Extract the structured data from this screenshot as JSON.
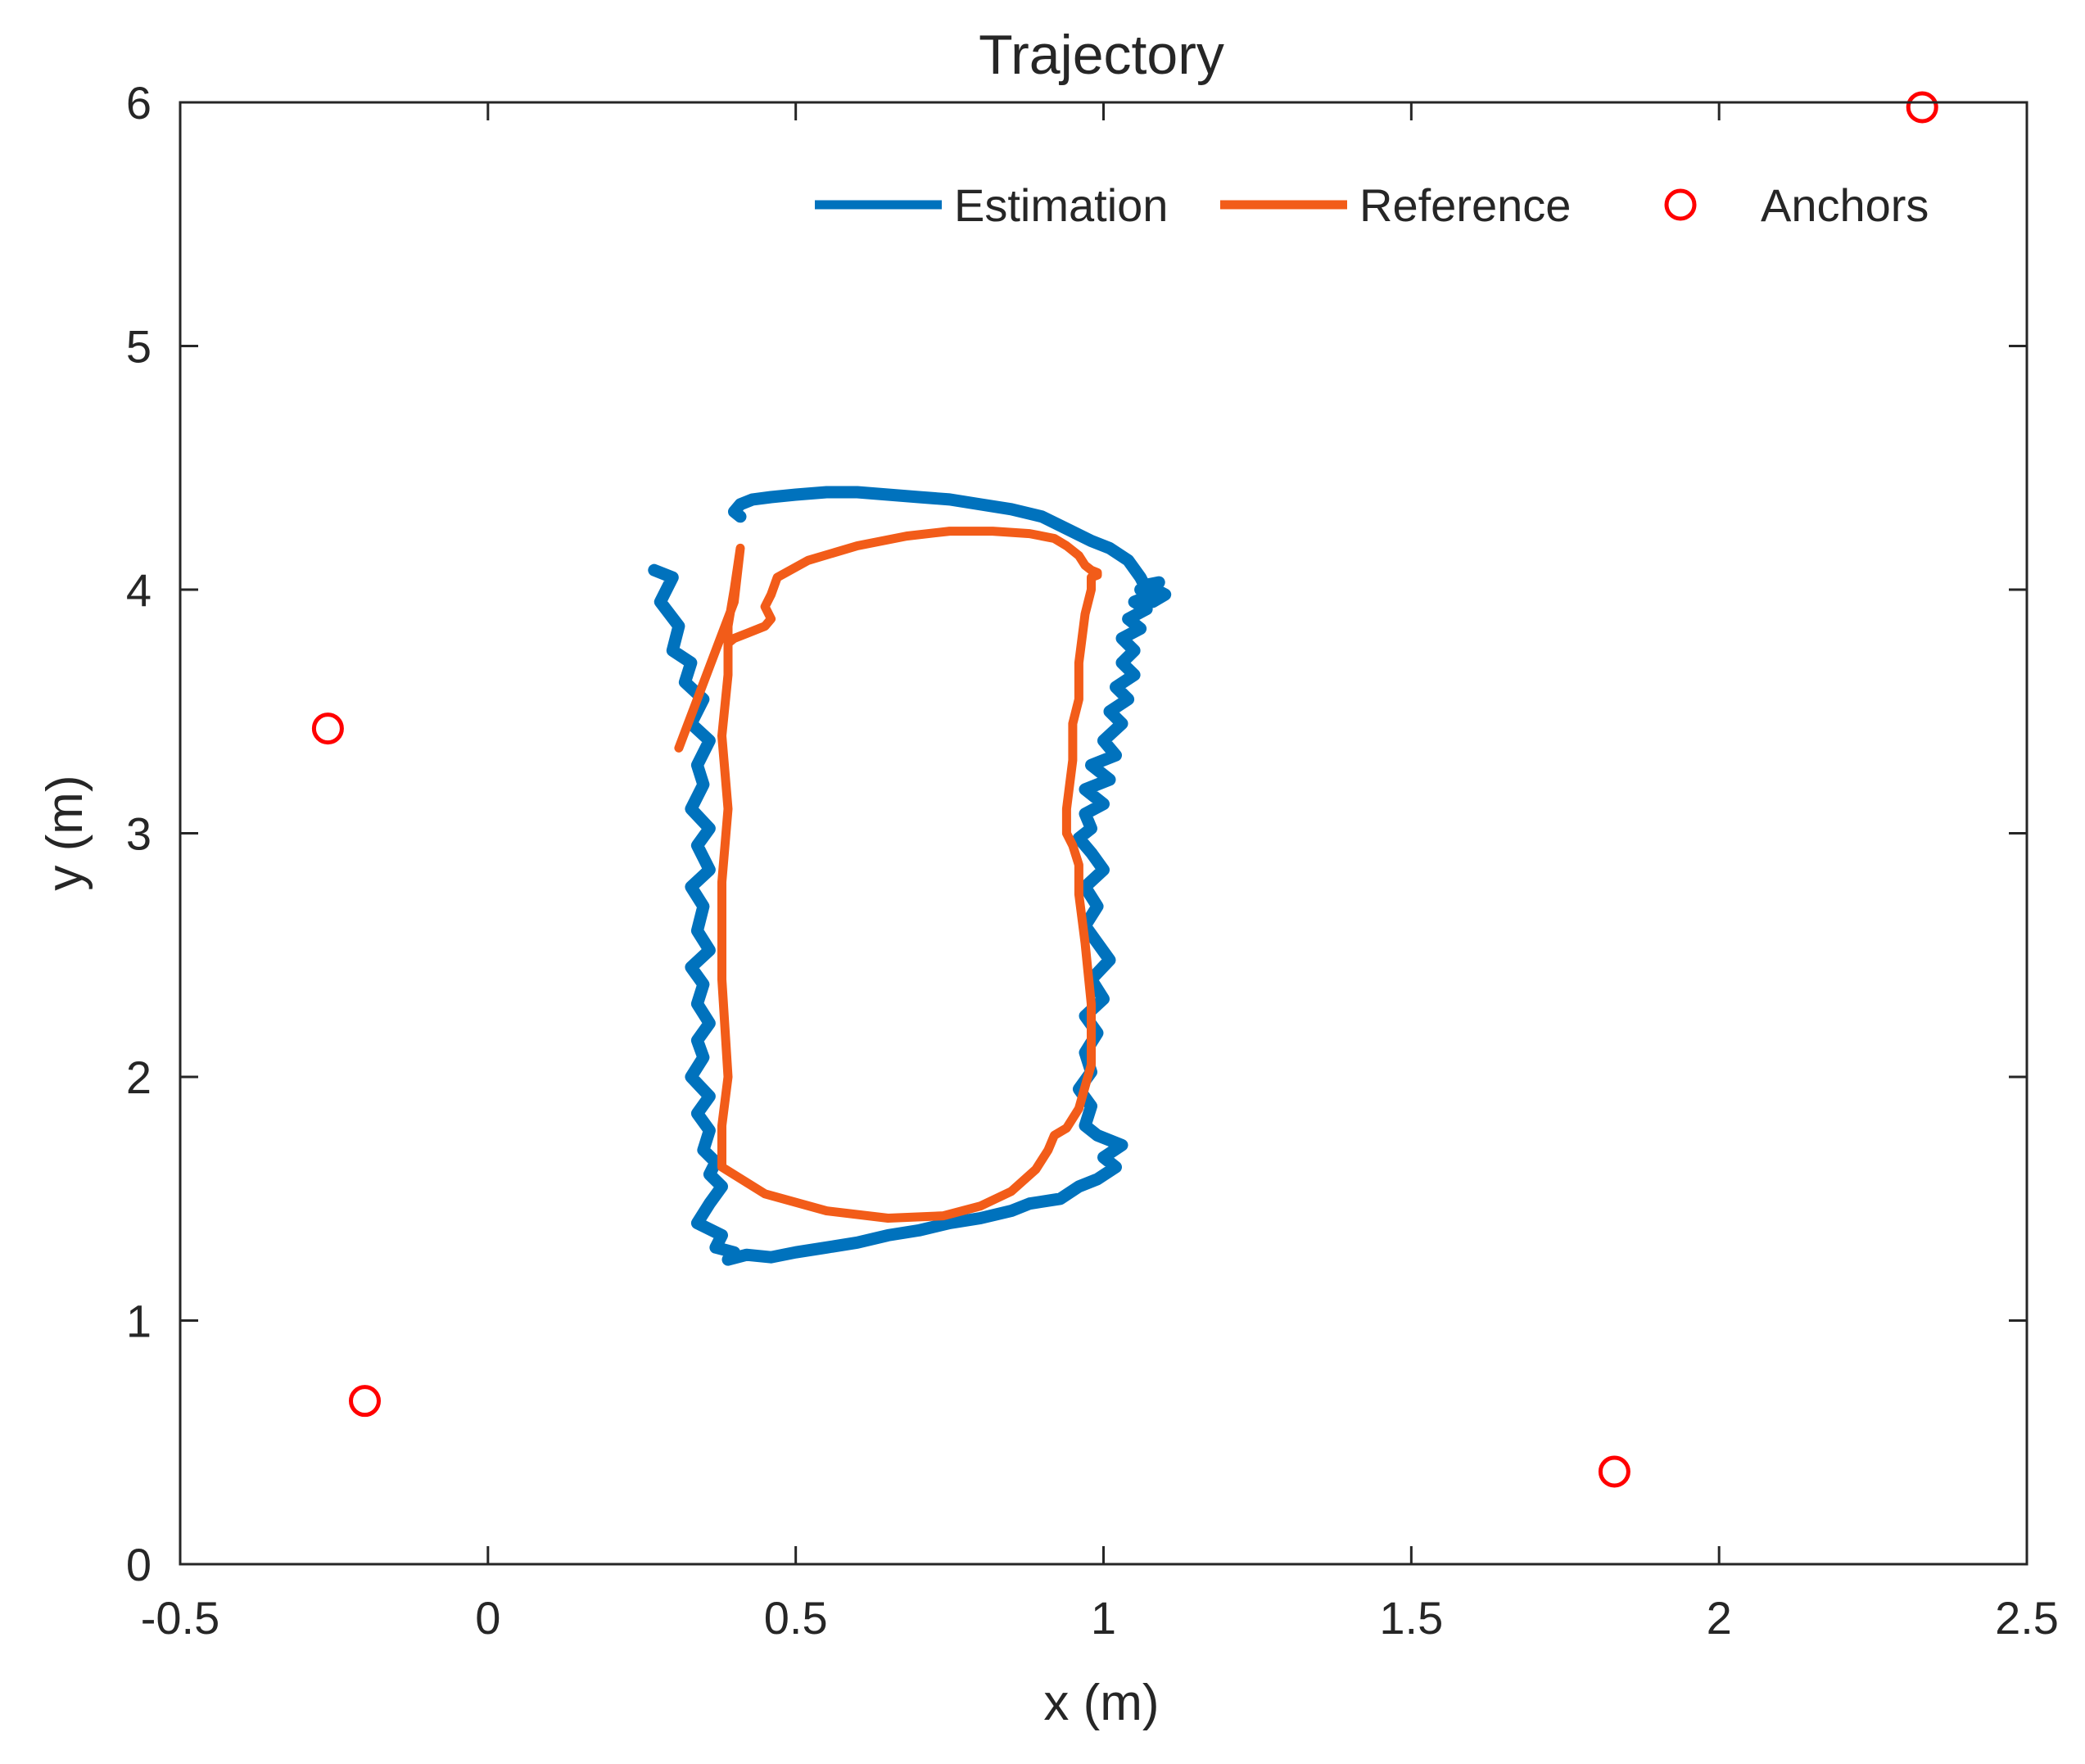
{
  "chart_data": {
    "type": "line",
    "title": "Trajectory",
    "xlabel": "x (m)",
    "ylabel": "y (m)",
    "xlim": [
      -0.5,
      2.5
    ],
    "ylim": [
      0,
      6
    ],
    "xticks": [
      -0.5,
      0,
      0.5,
      1,
      1.5,
      2,
      2.5
    ],
    "xtick_labels": [
      "-0.5",
      "0",
      "0.5",
      "1",
      "1.5",
      "2",
      "2.5"
    ],
    "yticks": [
      0,
      1,
      2,
      3,
      4,
      5,
      6
    ],
    "ytick_labels": [
      "0",
      "1",
      "2",
      "3",
      "4",
      "5",
      "6"
    ],
    "grid": false,
    "legend_position": "top-right",
    "legend": [
      "Estimation",
      "Reference",
      "Anchors"
    ],
    "colors": {
      "estimation": "#0072BD",
      "reference": "#F25C19",
      "anchors": "#FF0000"
    },
    "series": [
      {
        "name": "Estimation",
        "style": "line",
        "x": [
          0.27,
          0.3,
          0.28,
          0.31,
          0.3,
          0.33,
          0.32,
          0.35,
          0.33,
          0.36,
          0.34,
          0.35,
          0.33,
          0.36,
          0.34,
          0.36,
          0.33,
          0.35,
          0.34,
          0.36,
          0.33,
          0.35,
          0.34,
          0.36,
          0.34,
          0.35,
          0.33,
          0.36,
          0.34,
          0.36,
          0.35,
          0.37,
          0.36,
          0.38,
          0.36,
          0.34,
          0.38,
          0.37,
          0.4,
          0.39,
          0.42,
          0.46,
          0.5,
          0.55,
          0.6,
          0.65,
          0.7,
          0.75,
          0.8,
          0.85,
          0.88,
          0.93,
          0.96,
          0.99,
          1.02,
          1.0,
          1.03,
          0.99,
          0.97,
          0.98,
          0.96,
          0.98,
          0.97,
          0.99,
          0.97,
          1.0,
          0.98,
          1.01,
          0.99,
          0.97,
          0.99,
          0.97,
          1.0,
          0.98,
          0.96,
          0.98,
          0.97,
          1.0,
          0.97,
          1.01,
          0.98,
          1.02,
          1.0,
          1.03,
          1.01,
          1.04,
          1.02,
          1.05,
          1.03,
          1.05,
          1.03,
          1.06,
          1.04,
          1.07,
          1.05,
          1.08,
          1.06,
          1.09,
          1.07,
          1.1,
          1.08,
          1.06,
          1.04,
          1.01,
          0.98,
          0.94,
          0.9,
          0.85,
          0.8,
          0.75,
          0.7,
          0.65,
          0.6,
          0.55,
          0.5,
          0.46,
          0.43,
          0.41,
          0.4,
          0.41
        ],
        "y": [
          4.08,
          4.05,
          3.95,
          3.85,
          3.75,
          3.7,
          3.62,
          3.55,
          3.45,
          3.38,
          3.28,
          3.2,
          3.1,
          3.02,
          2.95,
          2.85,
          2.78,
          2.7,
          2.6,
          2.52,
          2.45,
          2.38,
          2.3,
          2.22,
          2.15,
          2.08,
          2.0,
          1.92,
          1.85,
          1.78,
          1.7,
          1.65,
          1.6,
          1.55,
          1.48,
          1.4,
          1.35,
          1.3,
          1.28,
          1.25,
          1.27,
          1.26,
          1.28,
          1.3,
          1.32,
          1.35,
          1.37,
          1.4,
          1.42,
          1.45,
          1.48,
          1.5,
          1.55,
          1.58,
          1.63,
          1.67,
          1.72,
          1.76,
          1.8,
          1.88,
          1.95,
          2.02,
          2.1,
          2.18,
          2.25,
          2.32,
          2.4,
          2.48,
          2.55,
          2.62,
          2.7,
          2.78,
          2.85,
          2.92,
          2.98,
          3.02,
          3.08,
          3.12,
          3.18,
          3.22,
          3.28,
          3.32,
          3.38,
          3.45,
          3.5,
          3.55,
          3.6,
          3.65,
          3.7,
          3.75,
          3.8,
          3.84,
          3.88,
          3.92,
          3.95,
          3.98,
          4.0,
          4.03,
          4.02,
          3.98,
          3.95,
          4.05,
          4.12,
          4.17,
          4.2,
          4.25,
          4.3,
          4.33,
          4.35,
          4.37,
          4.38,
          4.39,
          4.4,
          4.4,
          4.39,
          4.38,
          4.37,
          4.35,
          4.32,
          4.3
        ]
      },
      {
        "name": "Reference",
        "style": "line",
        "x": [
          0.31,
          0.34,
          0.37,
          0.4,
          0.41,
          0.4,
          0.39,
          0.39,
          0.38,
          0.39,
          0.38,
          0.38,
          0.39,
          0.38,
          0.38,
          0.45,
          0.55,
          0.65,
          0.74,
          0.8,
          0.85,
          0.89,
          0.91,
          0.92,
          0.94,
          0.96,
          0.98,
          0.98,
          0.97,
          0.96,
          0.96,
          0.95,
          0.94,
          0.94,
          0.95,
          0.95,
          0.96,
          0.96,
          0.97,
          0.98,
          0.98,
          0.99,
          0.99,
          0.98,
          0.97,
          0.96,
          0.94,
          0.92,
          0.88,
          0.82,
          0.75,
          0.68,
          0.6,
          0.52,
          0.47,
          0.46,
          0.45,
          0.46,
          0.45,
          0.42,
          0.4,
          0.39
        ],
        "y": [
          3.35,
          3.55,
          3.75,
          3.95,
          4.17,
          4.0,
          3.85,
          3.65,
          3.4,
          3.1,
          2.8,
          2.4,
          2.0,
          1.8,
          1.63,
          1.52,
          1.45,
          1.42,
          1.43,
          1.47,
          1.53,
          1.62,
          1.7,
          1.76,
          1.79,
          1.87,
          2.05,
          2.3,
          2.55,
          2.75,
          2.87,
          2.95,
          3.0,
          3.1,
          3.3,
          3.45,
          3.55,
          3.7,
          3.9,
          4.0,
          4.05,
          4.06,
          4.07,
          4.08,
          4.1,
          4.14,
          4.18,
          4.21,
          4.23,
          4.24,
          4.24,
          4.22,
          4.18,
          4.12,
          4.05,
          3.98,
          3.93,
          3.88,
          3.85,
          3.82,
          3.8,
          3.78
        ]
      },
      {
        "name": "Anchors",
        "style": "markers",
        "x": [
          -0.26,
          -0.2,
          1.83,
          2.33
        ],
        "y": [
          3.43,
          0.67,
          0.38,
          5.98
        ]
      }
    ]
  }
}
